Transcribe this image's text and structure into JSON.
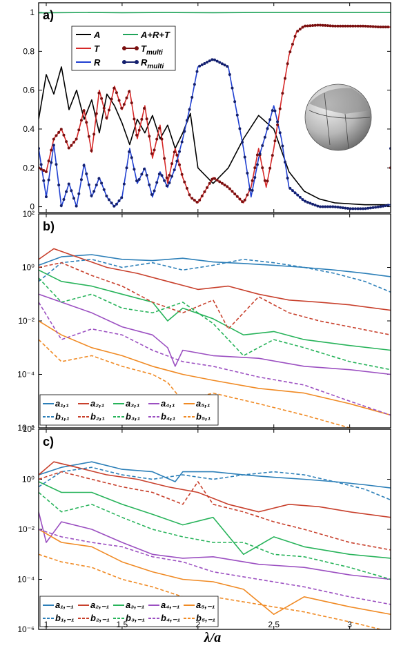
{
  "figure": {
    "xlabel": "λ/a",
    "xticks": [
      "1",
      "1.5",
      "2",
      "2.5",
      "3"
    ],
    "colors": {
      "black": "#000000",
      "green": "#20a45a",
      "red": "#d62828",
      "blue": "#1f3fd1",
      "darkred": "#7a0f0f",
      "navy": "#14206e",
      "c1": "#2c7fb8",
      "c2": "#c8402c",
      "c3": "#27b35a",
      "c4": "#9b4fc1",
      "c5": "#f08a24"
    }
  },
  "chart_data": [
    {
      "type": "line",
      "panel": "a)",
      "xlim": [
        0.95,
        3.27
      ],
      "ylim": [
        -0.03,
        1.05
      ],
      "yscale": "linear",
      "yticks": [
        "0",
        "0.2",
        "0.4",
        "0.6",
        "0.8",
        "1"
      ],
      "legend_position": "top-left",
      "inset": "sphere-illustration",
      "series": [
        {
          "name": "A",
          "style": "line",
          "color": "black",
          "x": [
            0.95,
            1.0,
            1.05,
            1.1,
            1.15,
            1.2,
            1.25,
            1.3,
            1.35,
            1.4,
            1.45,
            1.5,
            1.55,
            1.6,
            1.65,
            1.7,
            1.75,
            1.8,
            1.85,
            1.9,
            1.95,
            2.0,
            2.1,
            2.2,
            2.3,
            2.4,
            2.5,
            2.6,
            2.7,
            2.8,
            2.9,
            3.0,
            3.1,
            3.2,
            3.27
          ],
          "y": [
            0.45,
            0.68,
            0.58,
            0.72,
            0.5,
            0.6,
            0.45,
            0.55,
            0.38,
            0.58,
            0.52,
            0.43,
            0.32,
            0.45,
            0.38,
            0.47,
            0.35,
            0.42,
            0.3,
            0.38,
            0.48,
            0.2,
            0.12,
            0.2,
            0.35,
            0.47,
            0.4,
            0.18,
            0.08,
            0.04,
            0.02,
            0.015,
            0.01,
            0.01,
            0.01
          ]
        },
        {
          "name": "A+R+T",
          "style": "line",
          "color": "green",
          "x": [
            0.95,
            1.3,
            1.5,
            1.8,
            2.1,
            2.4,
            2.7,
            3.0,
            3.27
          ],
          "y": [
            0.998,
            1.0,
            0.999,
            1.0,
            0.999,
            1.0,
            1.0,
            1.0,
            1.0
          ]
        },
        {
          "name": "T",
          "style": "line",
          "color": "red",
          "x": [
            0.95,
            1.0,
            1.05,
            1.1,
            1.15,
            1.2,
            1.25,
            1.3,
            1.35,
            1.4,
            1.45,
            1.5,
            1.55,
            1.6,
            1.65,
            1.7,
            1.75,
            1.8,
            1.85,
            1.9,
            1.95,
            2.0,
            2.1,
            2.2,
            2.3,
            2.35,
            2.4,
            2.45,
            2.5,
            2.55,
            2.6,
            2.65,
            2.7,
            2.8,
            2.9,
            3.0,
            3.1,
            3.2,
            3.27
          ],
          "y": [
            0.2,
            0.18,
            0.35,
            0.4,
            0.3,
            0.35,
            0.5,
            0.28,
            0.6,
            0.45,
            0.62,
            0.5,
            0.6,
            0.35,
            0.52,
            0.25,
            0.42,
            0.12,
            0.3,
            0.15,
            0.05,
            0.02,
            0.15,
            0.1,
            0.02,
            0.1,
            0.3,
            0.1,
            0.3,
            0.55,
            0.78,
            0.9,
            0.93,
            0.935,
            0.93,
            0.93,
            0.93,
            0.925,
            0.925
          ]
        },
        {
          "name": "R",
          "style": "line",
          "color": "blue",
          "x": [
            0.95,
            1.0,
            1.05,
            1.1,
            1.15,
            1.2,
            1.25,
            1.3,
            1.35,
            1.4,
            1.45,
            1.5,
            1.55,
            1.6,
            1.65,
            1.7,
            1.75,
            1.8,
            1.85,
            1.9,
            1.95,
            2.0,
            2.1,
            2.2,
            2.3,
            2.35,
            2.4,
            2.45,
            2.5,
            2.55,
            2.6,
            2.7,
            2.8,
            2.9,
            3.0,
            3.1,
            3.2,
            3.27
          ],
          "y": [
            0.3,
            0.05,
            0.32,
            0.0,
            0.12,
            0.0,
            0.22,
            0.05,
            0.15,
            0.05,
            0.0,
            0.05,
            0.3,
            0.12,
            0.2,
            0.05,
            0.18,
            0.1,
            0.2,
            0.35,
            0.52,
            0.72,
            0.76,
            0.72,
            0.3,
            0.05,
            0.25,
            0.38,
            0.52,
            0.35,
            0.1,
            0.03,
            0.0,
            0.0,
            -0.01,
            -0.01,
            0.0,
            0.01
          ]
        },
        {
          "name": "T_multi",
          "style": "markers",
          "color": "darkred",
          "follows": "T"
        },
        {
          "name": "R_multi",
          "style": "markers",
          "color": "navy",
          "follows": "R"
        }
      ]
    },
    {
      "type": "line",
      "panel": "b)",
      "xlim": [
        0.95,
        3.27
      ],
      "ylim": [
        1e-06,
        100
      ],
      "yscale": "log",
      "yticks": [
        "10⁻⁶",
        "10⁻⁴",
        "10⁻²",
        "10⁰",
        "10²"
      ],
      "legend_position": "bottom-left",
      "series": [
        {
          "name": "a₁,₁",
          "style": "solid",
          "color": "c1",
          "x": [
            0.95,
            1.1,
            1.3,
            1.5,
            1.7,
            1.9,
            2.1,
            2.3,
            2.5,
            2.7,
            2.9,
            3.1,
            3.27
          ],
          "y": [
            1.2,
            2.5,
            3.0,
            2.0,
            1.8,
            2.2,
            1.6,
            1.4,
            1.2,
            1.0,
            0.8,
            0.6,
            0.45
          ]
        },
        {
          "name": "a₂,₁",
          "style": "solid",
          "color": "c2",
          "x": [
            0.95,
            1.05,
            1.2,
            1.4,
            1.6,
            1.8,
            2.0,
            2.2,
            2.4,
            2.6,
            2.8,
            3.0,
            3.27
          ],
          "y": [
            2.0,
            5.0,
            2.5,
            1.0,
            0.6,
            0.3,
            0.15,
            0.2,
            0.1,
            0.06,
            0.05,
            0.04,
            0.025
          ]
        },
        {
          "name": "a₃,₁",
          "style": "solid",
          "color": "c3",
          "x": [
            0.95,
            1.1,
            1.3,
            1.5,
            1.7,
            1.8,
            1.9,
            2.1,
            2.3,
            2.5,
            2.7,
            3.0,
            3.27
          ],
          "y": [
            0.8,
            0.3,
            0.2,
            0.1,
            0.05,
            0.01,
            0.03,
            0.012,
            0.003,
            0.004,
            0.002,
            0.0012,
            0.0008
          ]
        },
        {
          "name": "a₄,₁",
          "style": "solid",
          "color": "c4",
          "x": [
            0.95,
            1.1,
            1.3,
            1.5,
            1.7,
            1.8,
            1.85,
            1.9,
            2.1,
            2.4,
            2.7,
            3.0,
            3.27
          ],
          "y": [
            0.1,
            0.05,
            0.02,
            0.006,
            0.003,
            0.001,
            0.0002,
            0.0008,
            0.0005,
            0.0004,
            0.0002,
            0.00015,
            0.0001
          ]
        },
        {
          "name": "a₅,₁",
          "style": "solid",
          "color": "c5",
          "x": [
            0.95,
            1.1,
            1.3,
            1.5,
            1.7,
            1.9,
            2.1,
            2.4,
            2.7,
            3.0,
            3.27
          ],
          "y": [
            0.01,
            0.003,
            0.001,
            0.0005,
            0.0002,
            0.0001,
            6e-05,
            3e-05,
            2e-05,
            8e-06,
            3e-06
          ]
        },
        {
          "name": "b₁,₁",
          "style": "dashed",
          "color": "c1",
          "x": [
            0.95,
            1.1,
            1.3,
            1.5,
            1.7,
            1.9,
            2.1,
            2.3,
            2.5,
            2.7,
            2.9,
            3.1,
            3.27
          ],
          "y": [
            0.3,
            1.5,
            2.0,
            1.0,
            1.5,
            0.8,
            1.2,
            2.0,
            1.5,
            1.0,
            0.6,
            0.3,
            0.12
          ]
        },
        {
          "name": "b₂,₁",
          "style": "dashed",
          "color": "c2",
          "x": [
            0.95,
            1.1,
            1.3,
            1.5,
            1.7,
            1.9,
            2.1,
            2.2,
            2.4,
            2.6,
            2.8,
            3.0,
            3.27
          ],
          "y": [
            1.0,
            1.5,
            0.5,
            0.2,
            0.05,
            0.02,
            0.06,
            0.005,
            0.08,
            0.02,
            0.01,
            0.006,
            0.003
          ]
        },
        {
          "name": "b₃,₁",
          "style": "dashed",
          "color": "c3",
          "x": [
            0.95,
            1.1,
            1.3,
            1.5,
            1.7,
            1.9,
            2.1,
            2.3,
            2.5,
            2.7,
            3.0,
            3.27
          ],
          "y": [
            0.4,
            0.05,
            0.1,
            0.03,
            0.02,
            0.05,
            0.008,
            0.0005,
            0.002,
            0.001,
            0.0003,
            0.00015
          ]
        },
        {
          "name": "b₄,₁",
          "style": "dashed",
          "color": "c4",
          "x": [
            0.95,
            1.1,
            1.3,
            1.5,
            1.7,
            1.9,
            2.1,
            2.4,
            2.7,
            3.0,
            3.27
          ],
          "y": [
            0.05,
            0.002,
            0.005,
            0.003,
            0.0008,
            0.0003,
            0.0002,
            8e-05,
            4e-05,
            1e-05,
            3e-06
          ]
        },
        {
          "name": "b₅,₁",
          "style": "dashed",
          "color": "c5",
          "x": [
            0.95,
            1.1,
            1.3,
            1.5,
            1.7,
            1.8,
            1.9,
            2.1,
            2.4,
            2.7,
            3.0,
            3.27
          ],
          "y": [
            0.002,
            0.0003,
            0.0005,
            0.0002,
            0.0001,
            5e-05,
            1e-05,
            2e-05,
            8e-06,
            3e-06,
            1e-06,
            8e-07
          ]
        }
      ],
      "legend_rows": [
        [
          "a₁,₁",
          "a₂,₁",
          "a₃,₁",
          "a₄,₁",
          "a₅,₁"
        ],
        [
          "b₁,₁",
          "b₂,₁",
          "b₃,₁",
          "b₄,₁",
          "b₅,₁"
        ]
      ]
    },
    {
      "type": "line",
      "panel": "c)",
      "xlim": [
        0.95,
        3.27
      ],
      "ylim": [
        1e-06,
        100
      ],
      "yscale": "log",
      "yticks": [
        "10⁻⁶",
        "10⁻⁴",
        "10⁻²",
        "10⁰",
        "10²"
      ],
      "legend_position": "bottom-left",
      "series": [
        {
          "name": "a₁,₋₁",
          "style": "solid",
          "color": "c1",
          "x": [
            0.95,
            1.1,
            1.3,
            1.5,
            1.7,
            1.85,
            1.9,
            2.1,
            2.3,
            2.5,
            2.7,
            2.9,
            3.1,
            3.27
          ],
          "y": [
            1.5,
            3.0,
            5.0,
            2.5,
            2.0,
            0.8,
            2.0,
            2.0,
            1.5,
            1.2,
            1.0,
            0.8,
            0.6,
            0.45
          ]
        },
        {
          "name": "a₂,₋₁",
          "style": "solid",
          "color": "c2",
          "x": [
            0.95,
            1.05,
            1.2,
            1.4,
            1.6,
            1.8,
            2.0,
            2.2,
            2.4,
            2.6,
            2.8,
            3.0,
            3.27
          ],
          "y": [
            1.5,
            5.0,
            3.0,
            1.5,
            1.0,
            0.5,
            0.3,
            0.1,
            0.05,
            0.1,
            0.08,
            0.05,
            0.03
          ]
        },
        {
          "name": "a₃,₋₁",
          "style": "solid",
          "color": "c3",
          "x": [
            0.95,
            1.1,
            1.3,
            1.5,
            1.7,
            1.9,
            2.1,
            2.3,
            2.5,
            2.7,
            3.0,
            3.27
          ],
          "y": [
            0.8,
            0.3,
            0.3,
            0.1,
            0.04,
            0.015,
            0.03,
            0.001,
            0.005,
            0.002,
            0.001,
            0.0007
          ]
        },
        {
          "name": "a₄,₋₁",
          "style": "solid",
          "color": "c4",
          "x": [
            0.95,
            1.0,
            1.1,
            1.3,
            1.5,
            1.7,
            1.9,
            2.1,
            2.4,
            2.7,
            3.0,
            3.27
          ],
          "y": [
            0.05,
            0.003,
            0.02,
            0.01,
            0.003,
            0.001,
            0.0007,
            0.0008,
            0.0004,
            0.0003,
            0.00015,
            0.0001
          ]
        },
        {
          "name": "a₅,₋₁",
          "style": "solid",
          "color": "c5",
          "x": [
            0.95,
            1.1,
            1.3,
            1.5,
            1.7,
            1.9,
            2.1,
            2.3,
            2.5,
            2.7,
            3.0,
            3.27
          ],
          "y": [
            0.01,
            0.003,
            0.002,
            0.0005,
            0.0002,
            0.0001,
            8e-05,
            4e-05,
            4e-06,
            2e-05,
            8e-06,
            4e-06
          ]
        },
        {
          "name": "b₁,₋₁",
          "style": "dashed",
          "color": "c1",
          "x": [
            0.95,
            1.1,
            1.3,
            1.5,
            1.7,
            1.9,
            2.1,
            2.3,
            2.5,
            2.7,
            2.9,
            3.1,
            3.27
          ],
          "y": [
            0.5,
            2.0,
            3.0,
            1.5,
            1.0,
            1.5,
            1.0,
            1.5,
            2.0,
            1.5,
            0.8,
            0.4,
            0.15
          ]
        },
        {
          "name": "b₂,₋₁",
          "style": "dashed",
          "color": "c2",
          "x": [
            0.95,
            1.1,
            1.3,
            1.5,
            1.7,
            1.9,
            2.0,
            2.1,
            2.3,
            2.5,
            2.7,
            3.0,
            3.27
          ],
          "y": [
            1.0,
            2.0,
            1.0,
            0.5,
            0.3,
            0.1,
            0.8,
            0.1,
            0.05,
            0.02,
            0.01,
            0.003,
            0.0015
          ]
        },
        {
          "name": "b₃,₋₁",
          "style": "dashed",
          "color": "c3",
          "x": [
            0.95,
            1.1,
            1.3,
            1.5,
            1.7,
            1.9,
            2.1,
            2.3,
            2.5,
            2.7,
            3.0,
            3.27
          ],
          "y": [
            0.3,
            0.05,
            0.1,
            0.03,
            0.01,
            0.005,
            0.003,
            0.003,
            0.001,
            0.0008,
            0.0003,
            0.0001
          ]
        },
        {
          "name": "b₄,₋₁",
          "style": "dashed",
          "color": "c4",
          "x": [
            0.95,
            1.1,
            1.3,
            1.5,
            1.7,
            1.9,
            2.1,
            2.4,
            2.7,
            3.0,
            3.27
          ],
          "y": [
            0.01,
            0.005,
            0.003,
            0.002,
            0.0008,
            0.0005,
            0.0002,
            0.0001,
            5e-05,
            2e-05,
            1e-05
          ]
        },
        {
          "name": "b₅,₋₁",
          "style": "dashed",
          "color": "c5",
          "x": [
            0.95,
            1.1,
            1.3,
            1.5,
            1.7,
            1.9,
            2.1,
            2.4,
            2.7,
            3.0,
            3.27
          ],
          "y": [
            0.001,
            0.0005,
            0.0003,
            0.0001,
            5e-05,
            2e-05,
            2e-05,
            1e-05,
            5e-06,
            2e-06,
            8e-07
          ]
        }
      ],
      "legend_rows": [
        [
          "a₁,₋₁",
          "a₂,₋₁",
          "a₃,₋₁",
          "a₄,₋₁",
          "a₅,₋₁"
        ],
        [
          "b₁,₋₁",
          "b₂,₋₁",
          "b₃,₋₁",
          "b₄,₋₁",
          "b₅,₋₁"
        ]
      ]
    }
  ]
}
